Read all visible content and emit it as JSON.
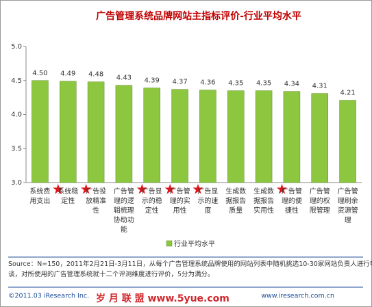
{
  "chart_data": {
    "type": "bar",
    "title": "广告管理系统品牌网站主指标评价-行业平均水平",
    "categories": [
      "系统费用支出",
      "系统稳定性",
      "广告投放精准性",
      "广告管理的逻辑梳理协助功能",
      "广告显示的稳定性",
      "广告管理的实用性",
      "广告显示的速度",
      "生成数据报告质量",
      "生成数据报告实用性",
      "广告管理的便捷性",
      "广告管理的权限管理",
      "广告管理刷余资源管理"
    ],
    "series": [
      {
        "name": "行业平均水平",
        "color": "#8dc63f",
        "values": [
          4.5,
          4.49,
          4.48,
          4.43,
          4.39,
          4.37,
          4.36,
          4.35,
          4.35,
          4.34,
          4.31,
          4.21
        ],
        "value_labels": [
          "4.50",
          "4.49",
          "4.48",
          "4.43",
          "4.39",
          "4.37",
          "4.36",
          "4.35",
          "4.35",
          "4.34",
          "4.31",
          "4.21"
        ]
      }
    ],
    "ylim": [
      3.0,
      5.0
    ],
    "yticks": [
      {
        "value": 3.0,
        "label": "3.0"
      },
      {
        "value": 3.5,
        "label": "3.5"
      },
      {
        "value": 4.0,
        "label": "4.0"
      },
      {
        "value": 4.5,
        "label": "4.5"
      },
      {
        "value": 5.0,
        "label": "5.0"
      }
    ],
    "grid": false,
    "source": "Source：N=150，2011年2月21日-3月11日，从每个广告管理系统品牌使用的网站列表中随机挑选10-30家网站负责人进行电话访谈，对所使用的广告管理系统就十二个评测维度进行评价，5分为满分。",
    "copyright": "©2011.03 iResearch Inc.",
    "website": "www.iresearch.com.cn",
    "watermark": "岁 月 联 盟 www.5yue.com"
  }
}
